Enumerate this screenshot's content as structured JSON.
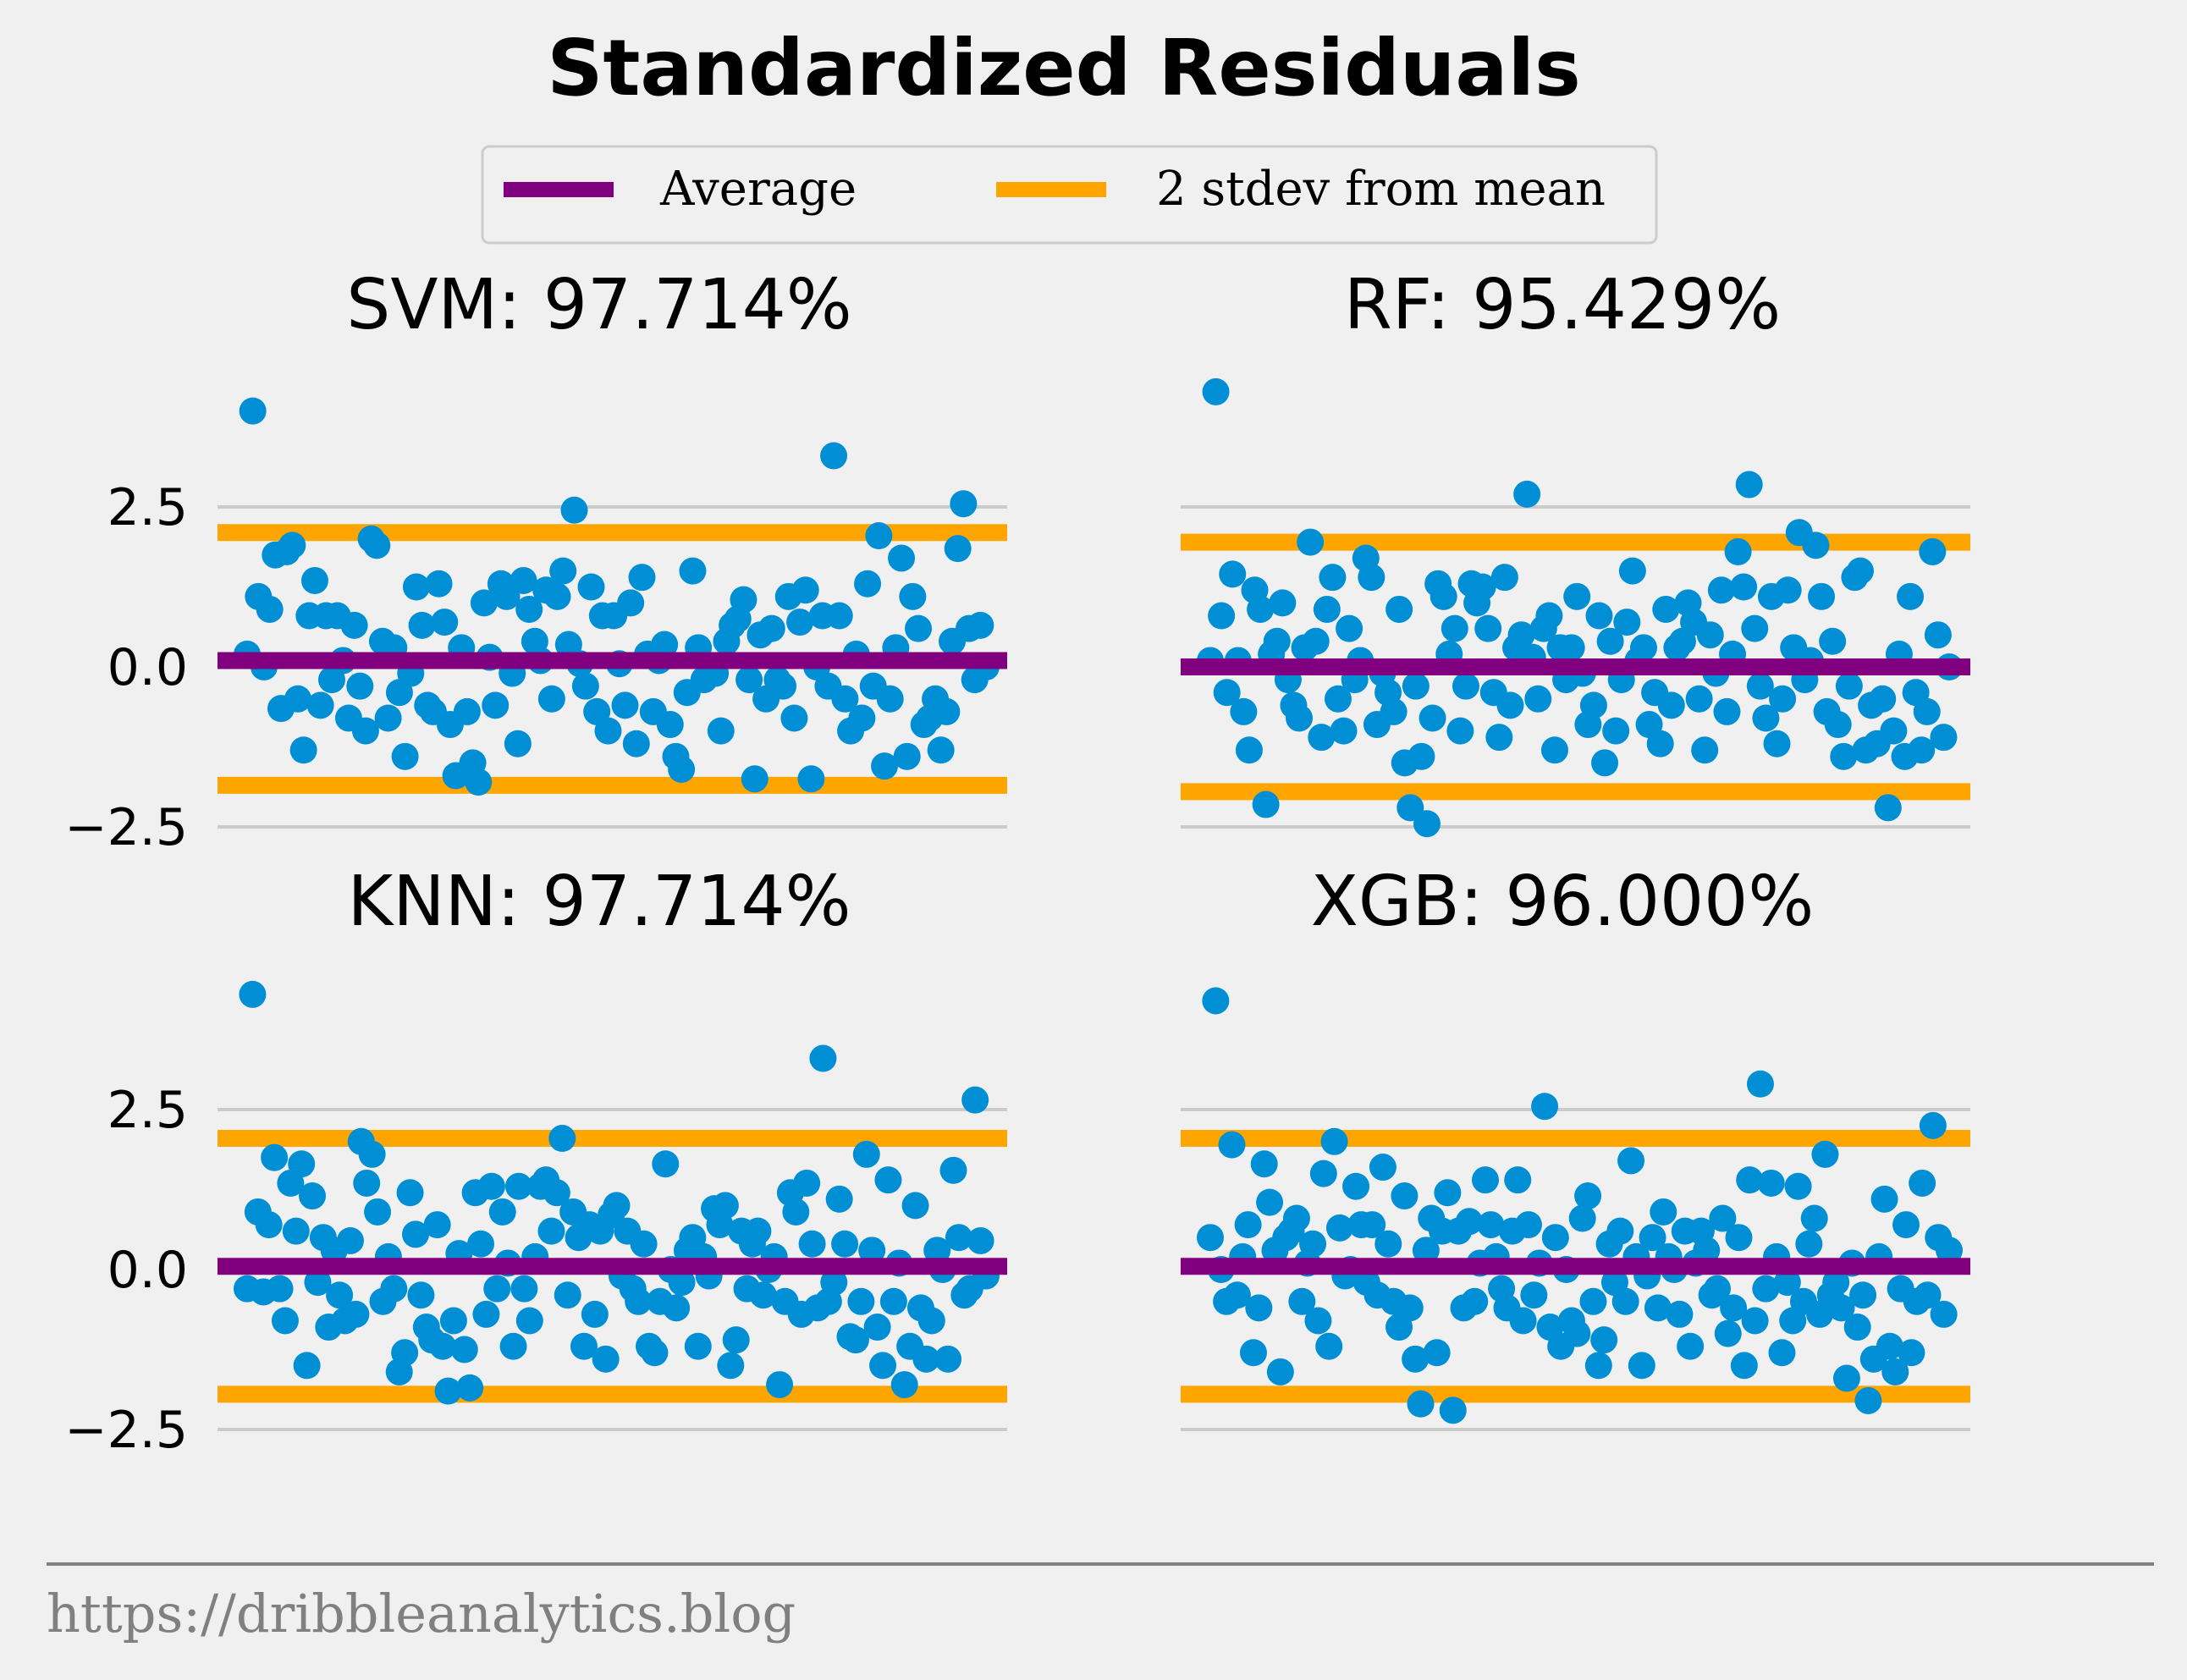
{
  "chart_data": {
    "type": "scatter",
    "title": "Standardized Residuals",
    "legend": {
      "placement": "top-center",
      "entries": [
        {
          "label": "Average",
          "color": "#800080"
        },
        {
          "label": "2 stdev from mean",
          "color": "#ffa500"
        }
      ]
    },
    "point_color": "#008fd5",
    "grid": true,
    "y_ticks": [
      -2.5,
      0.0,
      2.5
    ],
    "y_tick_labels": [
      "−2.5",
      "0.0",
      "2.5"
    ],
    "ylim": [
      -2.7,
      4.6
    ],
    "footer": "https://dribbleanalytics.blog",
    "subplots": [
      {
        "title": "SVM: 97.714%",
        "mean": 0.1,
        "lower": -1.85,
        "upper": 2.1,
        "y": [
          0.2,
          4.0,
          1.1,
          0.0,
          0.9,
          1.75,
          -0.65,
          1.8,
          1.9,
          -0.5,
          -1.3,
          0.8,
          1.35,
          -0.6,
          0.8,
          -0.2,
          0.8,
          0.1,
          -0.8,
          0.65,
          -0.3,
          -1.0,
          2.0,
          1.9,
          0.4,
          -0.8,
          0.3,
          -0.4,
          -1.4,
          -0.1,
          1.25,
          0.65,
          -0.6,
          -0.7,
          1.3,
          0.7,
          -0.9,
          -1.7,
          0.3,
          -0.7,
          -1.5,
          -1.8,
          1.0,
          0.15,
          -0.6,
          1.3,
          1.1,
          -0.1,
          -1.2,
          1.35,
          0.9,
          0.4,
          0.1,
          1.2,
          -0.5,
          1.1,
          1.5,
          0.35,
          2.45,
          0.05,
          -0.3,
          1.25,
          -0.7,
          0.8,
          -1.0,
          0.8,
          0.05,
          -0.6,
          1.0,
          -1.2,
          1.4,
          0.2,
          -0.7,
          0.1,
          0.35,
          -0.9,
          -1.4,
          -1.6,
          -0.4,
          1.5,
          0.3,
          -0.2,
          0.0,
          -0.1,
          -1.0,
          0.4,
          0.65,
          0.75,
          1.05,
          -0.2,
          -1.75,
          0.5,
          -0.5,
          0.6,
          -0.2,
          -0.3,
          1.1,
          -0.8,
          0.7,
          1.2,
          -1.75,
          0.0,
          0.8,
          -0.3,
          3.3,
          0.8,
          -0.5,
          -1.0,
          0.2,
          -0.8,
          1.3,
          -0.3,
          2.05,
          -1.55,
          -0.5,
          0.3,
          1.7,
          -1.4,
          1.1,
          0.6,
          -0.9,
          -0.8,
          -0.5,
          -1.3,
          -0.7,
          0.4,
          1.85,
          2.55,
          0.6,
          -0.2,
          0.65,
          0.0
        ]
      },
      {
        "title": "RF: 95.429%",
        "mean": 0.0,
        "lower": -1.95,
        "upper": 1.95,
        "y": [
          0.1,
          4.3,
          0.8,
          -0.4,
          1.45,
          0.1,
          -0.7,
          -1.3,
          1.2,
          0.9,
          -2.15,
          0.2,
          0.4,
          1.0,
          -0.2,
          -0.6,
          -0.8,
          0.3,
          1.95,
          0.4,
          -1.1,
          0.9,
          1.4,
          -0.5,
          -1.0,
          0.6,
          -0.2,
          0.1,
          1.7,
          1.4,
          -0.9,
          -0.1,
          -0.4,
          -0.7,
          0.9,
          -1.5,
          -2.2,
          -0.3,
          -1.4,
          -2.45,
          -0.8,
          1.3,
          1.1,
          0.2,
          0.6,
          -1.0,
          -0.3,
          1.3,
          1.0,
          1.25,
          0.6,
          -0.4,
          -1.1,
          1.4,
          -0.6,
          0.3,
          0.5,
          2.7,
          0.15,
          -0.5,
          0.6,
          0.8,
          -1.3,
          0.3,
          -0.2,
          0.3,
          1.1,
          -0.1,
          -0.9,
          -0.6,
          0.8,
          -1.5,
          0.4,
          -1.0,
          -0.2,
          0.7,
          1.5,
          0.1,
          0.3,
          -0.9,
          -0.4,
          -1.2,
          0.9,
          -0.6,
          0.3,
          0.4,
          1.0,
          0.7,
          -0.5,
          -1.3,
          0.5,
          -0.1,
          1.2,
          -0.7,
          0.2,
          1.8,
          1.25,
          2.85,
          0.6,
          -0.3,
          -0.8,
          1.1,
          -1.2,
          -0.5,
          1.2,
          0.3,
          2.1,
          -0.2,
          0.1,
          1.9,
          1.1,
          -0.7,
          0.4,
          -0.9,
          -1.4,
          -0.3,
          1.4,
          1.5,
          -1.3,
          -0.6,
          -1.2,
          -0.5,
          -2.2,
          -1.0,
          0.2,
          -1.4,
          1.1,
          -0.4,
          -1.3,
          -0.7,
          1.8,
          0.5,
          -1.1,
          0.0
        ]
      },
      {
        "title": "KNN: 97.714%",
        "mean": 0.05,
        "lower": -1.95,
        "upper": 2.05,
        "y": [
          -0.3,
          4.3,
          0.9,
          -0.35,
          0.7,
          1.75,
          -0.3,
          -0.8,
          1.35,
          0.6,
          1.65,
          -1.5,
          1.15,
          -0.2,
          0.5,
          -0.9,
          0.3,
          -0.4,
          -0.8,
          0.45,
          -0.7,
          2.0,
          1.35,
          1.8,
          0.9,
          -0.5,
          0.2,
          -0.3,
          -1.6,
          -1.3,
          1.2,
          0.55,
          -0.4,
          -0.9,
          -1.1,
          0.7,
          -1.2,
          -1.9,
          -0.8,
          0.25,
          -1.25,
          -1.85,
          1.2,
          0.4,
          -0.7,
          1.3,
          -0.3,
          0.9,
          0.1,
          -1.2,
          1.3,
          -0.3,
          -0.8,
          0.2,
          1.3,
          1.4,
          0.6,
          1.2,
          2.05,
          -0.4,
          0.9,
          0.5,
          -1.2,
          0.7,
          -0.7,
          0.6,
          -1.4,
          0.85,
          1.0,
          -0.1,
          0.6,
          -0.3,
          -0.5,
          0.4,
          -1.2,
          -1.3,
          -0.5,
          1.65,
          0.0,
          -0.6,
          -0.2,
          0.3,
          0.5,
          -1.2,
          0.2,
          -0.1,
          0.95,
          0.7,
          1.0,
          -1.5,
          -1.1,
          0.6,
          -0.3,
          0.4,
          0.6,
          -0.4,
          0.0,
          0.2,
          -1.8,
          -0.5,
          1.2,
          0.9,
          -0.7,
          1.35,
          0.4,
          -0.6,
          3.3,
          -0.5,
          -0.2,
          1.1,
          0.4,
          -1.05,
          -1.1,
          -0.5,
          1.8,
          0.3,
          -0.9,
          -1.5,
          1.4,
          -0.5,
          0.1,
          -1.8,
          -1.2,
          1.0,
          -0.6,
          -1.4,
          -0.8,
          0.3,
          0.0,
          -1.4,
          1.55,
          0.5,
          -0.4,
          -0.3,
          2.65,
          0.45,
          -0.1
        ]
      },
      {
        "title": "XGB: 96.000%",
        "mean": 0.05,
        "lower": -1.95,
        "upper": 2.05,
        "y": [
          0.5,
          4.2,
          0.0,
          -0.5,
          1.95,
          -0.4,
          0.2,
          0.7,
          -1.3,
          -0.6,
          1.65,
          1.05,
          0.3,
          -1.6,
          0.5,
          0.6,
          0.8,
          -0.5,
          0.1,
          0.4,
          -0.8,
          1.5,
          -1.2,
          2.0,
          0.65,
          -0.1,
          0.0,
          1.3,
          0.7,
          -0.2,
          0.7,
          -0.4,
          1.6,
          0.4,
          -0.5,
          -0.9,
          1.15,
          -0.6,
          -1.4,
          -2.1,
          0.3,
          0.8,
          -1.3,
          0.6,
          1.2,
          -2.2,
          0.6,
          -0.6,
          0.75,
          -0.5,
          0.1,
          1.4,
          0.7,
          0.2,
          -0.3,
          -0.6,
          0.6,
          1.4,
          -0.8,
          0.7,
          -0.4,
          0.1,
          2.55,
          -0.9,
          0.5,
          -1.2,
          0.0,
          -0.8,
          -1.0,
          0.8,
          1.15,
          -0.5,
          -1.5,
          -1.1,
          0.4,
          -0.2,
          0.6,
          -0.5,
          1.7,
          0.2,
          -1.5,
          -0.1,
          0.5,
          -0.6,
          0.9,
          0.2,
          0.0,
          -0.7,
          0.6,
          -1.2,
          0.1,
          0.6,
          0.3,
          -0.4,
          -0.3,
          0.8,
          -1.0,
          -0.6,
          0.5,
          -1.5,
          1.4,
          -0.8,
          2.9,
          -0.3,
          1.35,
          0.2,
          -1.3,
          -0.2,
          -0.8,
          1.3,
          -0.5,
          0.4,
          0.8,
          -0.7,
          1.8,
          -0.4,
          -0.2,
          -0.6,
          -1.7,
          0.1,
          -0.9,
          -0.4,
          -2.05,
          -1.4,
          0.2,
          1.1,
          -1.2,
          -1.6,
          -0.3,
          0.7,
          -1.3,
          -0.5,
          1.35,
          -0.4,
          2.25,
          0.5,
          -0.7,
          0.3
        ]
      }
    ]
  }
}
